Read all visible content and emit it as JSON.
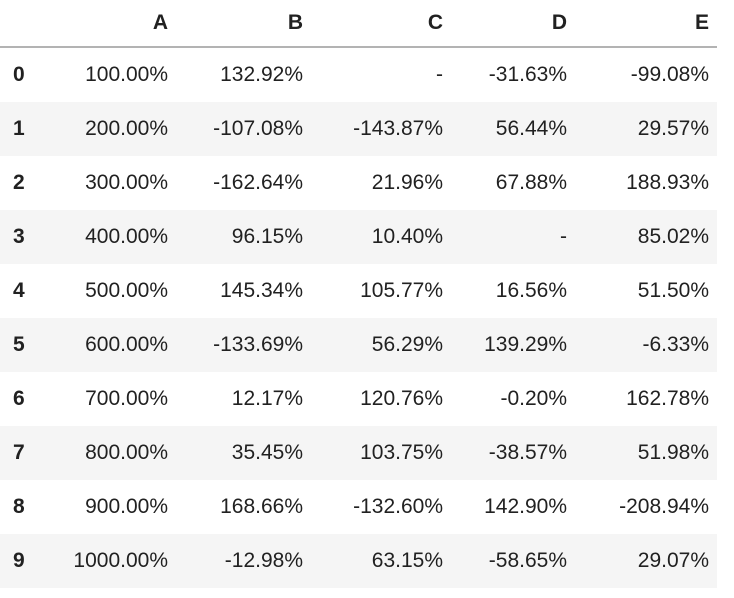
{
  "chart_data": {
    "type": "table",
    "corner_label": "",
    "columns": [
      "A",
      "B",
      "C",
      "D",
      "E"
    ],
    "index": [
      "0",
      "1",
      "2",
      "3",
      "4",
      "5",
      "6",
      "7",
      "8",
      "9"
    ],
    "rows": [
      [
        "100.00%",
        "132.92%",
        "-",
        "-31.63%",
        "-99.08%"
      ],
      [
        "200.00%",
        "-107.08%",
        "-143.87%",
        "56.44%",
        "29.57%"
      ],
      [
        "300.00%",
        "-162.64%",
        "21.96%",
        "67.88%",
        "188.93%"
      ],
      [
        "400.00%",
        "96.15%",
        "10.40%",
        "-",
        "85.02%"
      ],
      [
        "500.00%",
        "145.34%",
        "105.77%",
        "16.56%",
        "51.50%"
      ],
      [
        "600.00%",
        "-133.69%",
        "56.29%",
        "139.29%",
        "-6.33%"
      ],
      [
        "700.00%",
        "12.17%",
        "120.76%",
        "-0.20%",
        "162.78%"
      ],
      [
        "800.00%",
        "35.45%",
        "103.75%",
        "-38.57%",
        "51.98%"
      ],
      [
        "900.00%",
        "168.66%",
        "-132.60%",
        "142.90%",
        "-208.94%"
      ],
      [
        "1000.00%",
        "-12.98%",
        "63.15%",
        "-58.65%",
        "29.07%"
      ]
    ],
    "missing_value_placeholder": "-",
    "layout_hints": {
      "value_alignment": "right",
      "striped_rows": "odd-index-rows-shaded",
      "grid": "off",
      "header_rule": "on"
    }
  },
  "colors": {
    "stripe": "#f5f5f5",
    "header_border": "#b3b3b3",
    "text": "#212121",
    "background": "#ffffff"
  }
}
